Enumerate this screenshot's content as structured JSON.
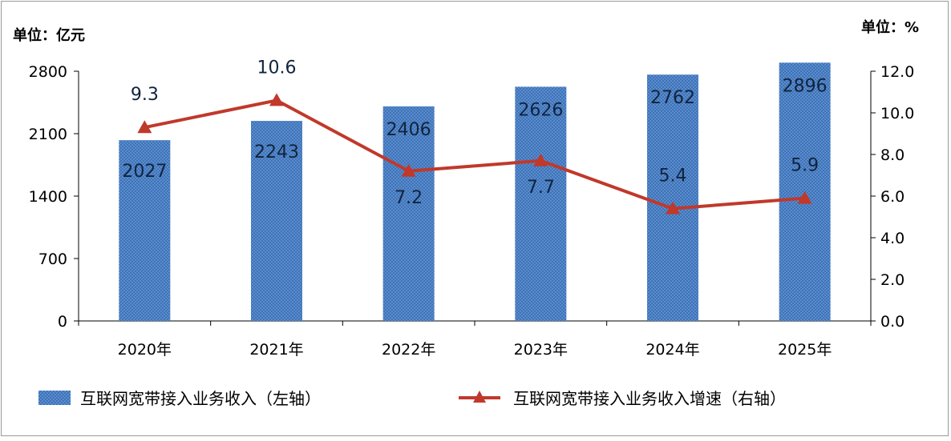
{
  "chart_data": {
    "type": "bar",
    "categories": [
      "2020年",
      "2021年",
      "2022年",
      "2023年",
      "2024年",
      "2025年"
    ],
    "left_axis": {
      "unit_label": "单位：亿元",
      "ylim": [
        0,
        2800
      ],
      "ticks": [
        "0",
        "700",
        "1400",
        "2100",
        "2800"
      ]
    },
    "right_axis": {
      "unit_label": "单位：%",
      "ylim": [
        0,
        12
      ],
      "ticks": [
        "0.0",
        "2.0",
        "4.0",
        "6.0",
        "8.0",
        "10.0",
        "12.0"
      ]
    },
    "series": [
      {
        "name": "互联网宽带接入业务收入（左轴）",
        "type": "bar",
        "axis": "left",
        "color": "#4f81bd",
        "values": [
          2027,
          2243,
          2406,
          2626,
          2762,
          2896
        ],
        "labels": [
          "2027",
          "2243",
          "2406",
          "2626",
          "2762",
          "2896"
        ]
      },
      {
        "name": "互联网宽带接入业务收入增速（右轴）",
        "type": "line",
        "axis": "right",
        "color": "#c0392b",
        "marker": "triangle",
        "values": [
          9.3,
          10.6,
          7.2,
          7.7,
          5.4,
          5.9
        ],
        "labels": [
          "9.3",
          "10.6",
          "7.2",
          "7.7",
          "5.4",
          "5.9"
        ]
      }
    ],
    "grid": false,
    "legend": "bottom"
  }
}
